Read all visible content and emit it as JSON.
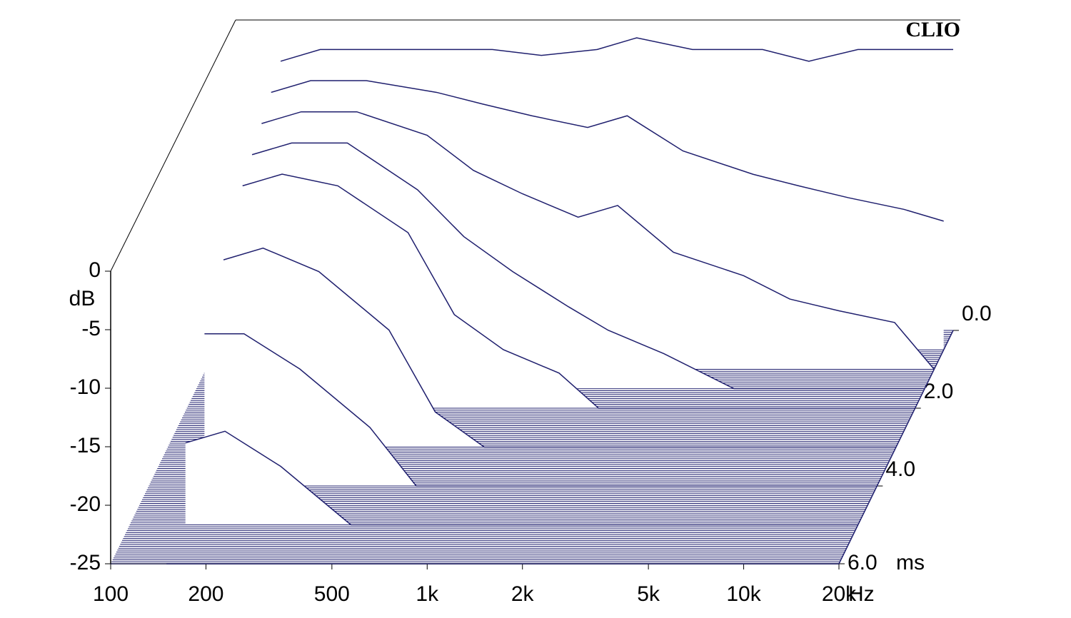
{
  "chart_data": {
    "type": "waterfall",
    "watermark": "CLIO",
    "x_label": "Hz",
    "y_label": "dB",
    "z_label": "ms",
    "color": "#1f1f6e",
    "xlim": [
      100,
      20000
    ],
    "ylim": [
      -25,
      0
    ],
    "zlim": [
      0,
      6
    ],
    "log_x": true,
    "xticks": [
      100,
      200,
      500,
      {
        "value": 1000,
        "label": "1k"
      },
      {
        "value": 2000,
        "label": "2k"
      },
      {
        "value": 5000,
        "label": "5k"
      },
      {
        "value": 10000,
        "label": "10k"
      },
      {
        "value": 20000,
        "label": "20k"
      }
    ],
    "yticks": [
      0,
      -5,
      -10,
      -15,
      -20,
      -25
    ],
    "zticks": [
      {
        "value": 0,
        "label": "0.0"
      },
      {
        "value": 2,
        "label": "2.0"
      },
      {
        "value": 4,
        "label": "4.0"
      },
      {
        "value": 6,
        "label": "6.0"
      }
    ],
    "x": [
      150,
      200,
      300,
      500,
      700,
      1000,
      1500,
      2000,
      3000,
      5000,
      7000,
      10000,
      15000,
      20000
    ],
    "slices": [
      {
        "t": 0,
        "values": [
          -2,
          -1,
          -1,
          -1,
          -1,
          -1.5,
          -1,
          0,
          -1,
          -1,
          -2,
          -1,
          -1,
          -1
        ]
      },
      {
        "t": 0.5,
        "values": [
          -3,
          -2,
          -2,
          -3,
          -4,
          -5,
          -6,
          -5,
          -8,
          -10,
          -11,
          -12,
          -13,
          -14
        ]
      },
      {
        "t": 1,
        "values": [
          -4,
          -3,
          -3,
          -5,
          -8,
          -10,
          -12,
          -11,
          -15,
          -17,
          -19,
          -20,
          -21,
          -25
        ]
      },
      {
        "t": 1.5,
        "values": [
          -5,
          -4,
          -4,
          -8,
          -12,
          -15,
          -18,
          -20,
          -22,
          -25,
          -25,
          -25,
          -25,
          -25
        ]
      },
      {
        "t": 2,
        "values": [
          -6,
          -5,
          -6,
          -10,
          -17,
          -20,
          -22,
          -25,
          -25,
          -25,
          -25,
          -25,
          -25,
          -25
        ]
      },
      {
        "t": 3,
        "values": [
          -9,
          -8,
          -10,
          -15,
          -22,
          -25,
          -25,
          -25,
          -25,
          -25,
          -25,
          -25,
          -25,
          -25
        ]
      },
      {
        "t": 4,
        "values": [
          -12,
          -12,
          -15,
          -20,
          -25,
          -25,
          -25,
          -25,
          -25,
          -25,
          -25,
          -25,
          -25,
          -25
        ]
      },
      {
        "t": 5,
        "values": [
          -18,
          -17,
          -20,
          -25,
          -25,
          -25,
          -25,
          -25,
          -25,
          -25,
          -25,
          -25,
          -25,
          -25
        ]
      },
      {
        "t": 6,
        "values": [
          -25,
          -25,
          -25,
          -25,
          -25,
          -25,
          -25,
          -25,
          -25,
          -25,
          -25,
          -25,
          -25,
          -25
        ]
      }
    ]
  }
}
